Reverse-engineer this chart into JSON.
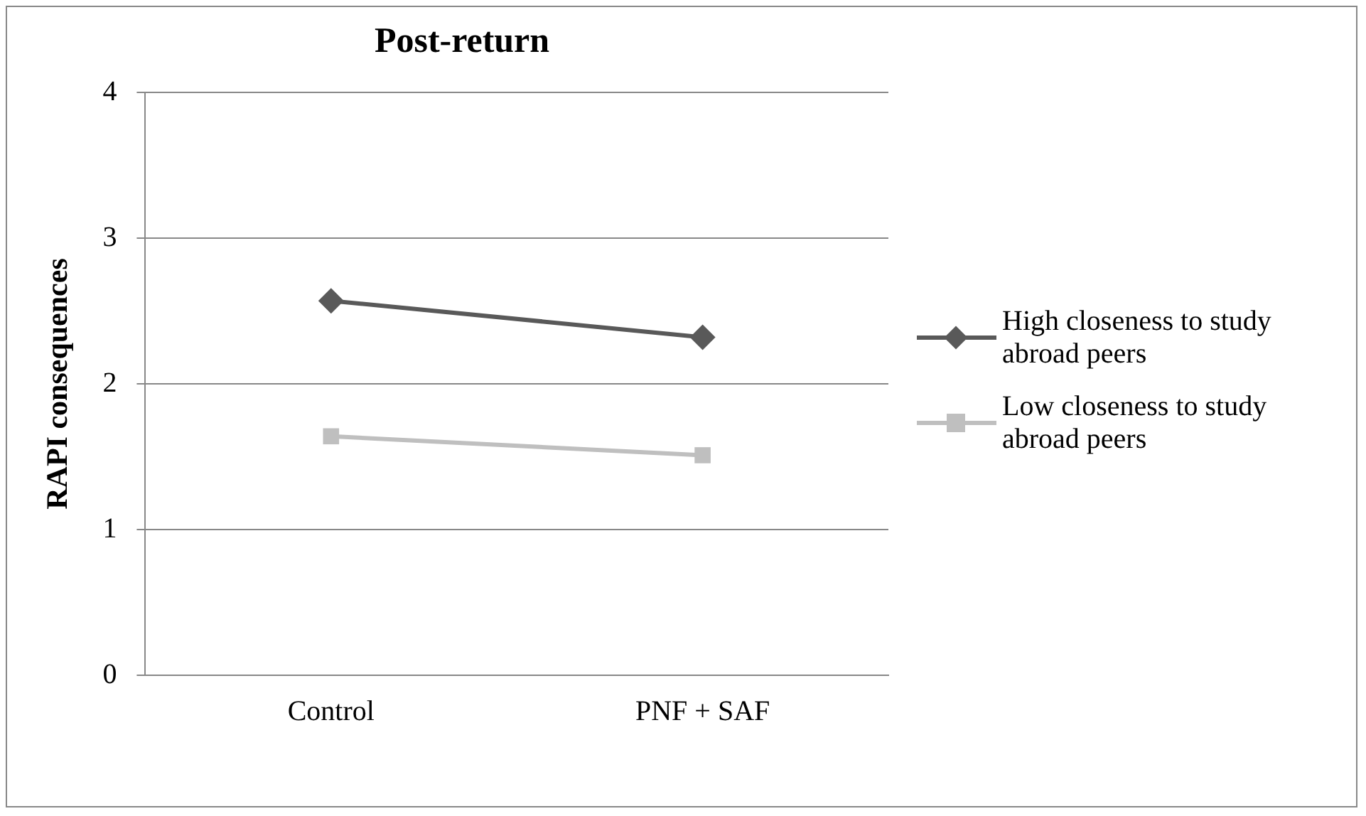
{
  "chart_data": {
    "type": "line",
    "title": "Post-return",
    "ylabel": "RAPI consequences",
    "categories": [
      "Control",
      "PNF + SAF"
    ],
    "series": [
      {
        "name": "High closeness to study abroad peers",
        "color": "#595959",
        "values": [
          2.57,
          2.32
        ],
        "marker": "diamond"
      },
      {
        "name": "Low closeness to study abroad peers",
        "color": "#bfbfbf",
        "values": [
          1.64,
          1.51
        ],
        "marker": "square"
      }
    ],
    "ylim": [
      0,
      4
    ],
    "yticks": [
      0,
      1,
      2,
      3,
      4
    ],
    "grid": "y",
    "legend": "right"
  }
}
